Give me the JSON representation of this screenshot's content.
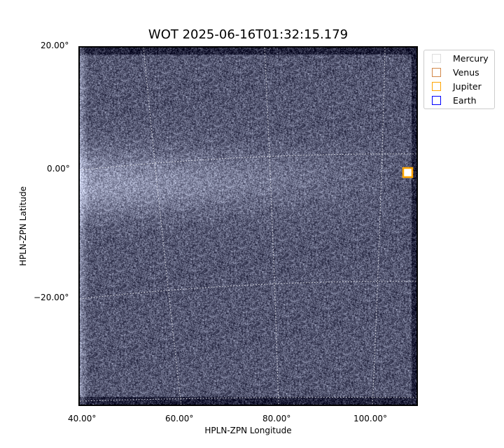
{
  "chart_data": {
    "type": "heatmap",
    "title": "WOT 2025-06-16T01:32:15.179",
    "xlabel": "HPLN-ZPN Longitude",
    "ylabel": "HPLN-ZPN Latitude",
    "x_ticks": [
      "40.00°",
      "60.00°",
      "80.00°",
      "100.00°"
    ],
    "y_ticks": [
      "20.00°",
      "0.00°",
      "−20.00°"
    ],
    "grid": true,
    "colormap": "grayscale-blue",
    "legend_position": "outside-top-right",
    "legend": [
      {
        "name": "Mercury",
        "color": "#dddddd"
      },
      {
        "name": "Venus",
        "color": "#d2884a"
      },
      {
        "name": "Jupiter",
        "color": "#ffa500"
      },
      {
        "name": "Earth",
        "color": "#0000ff"
      }
    ],
    "markers": [
      {
        "name": "Jupiter",
        "lon": 107.5,
        "lat": -0.5,
        "color": "#ffa500"
      }
    ]
  }
}
